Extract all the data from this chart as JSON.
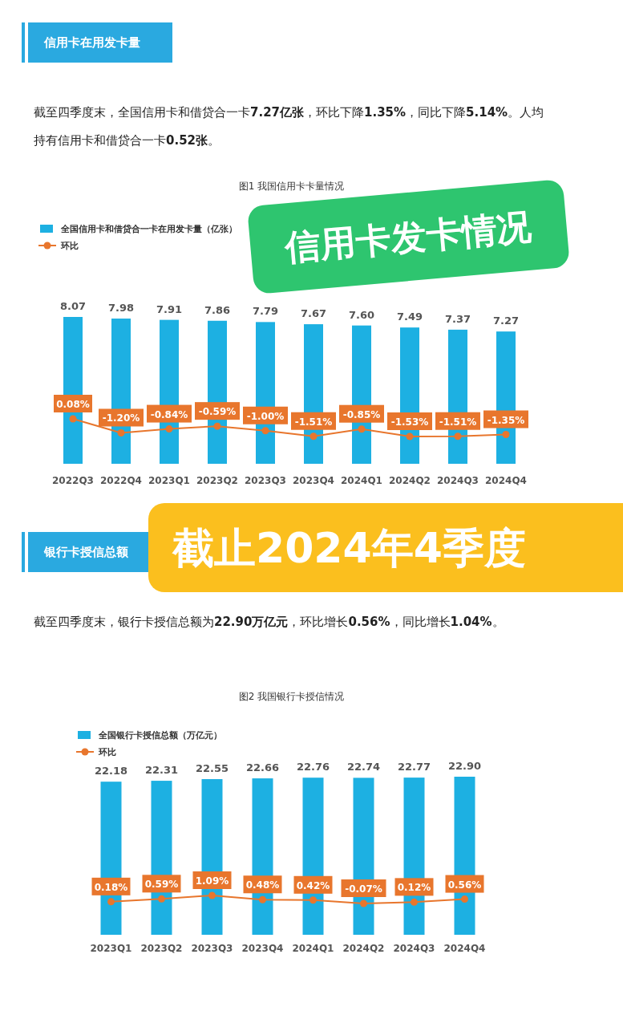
{
  "chart_data": [
    {
      "type": "bar",
      "title": "图1 我国信用卡卡量情况",
      "categories": [
        "2022Q3",
        "2022Q4",
        "2023Q1",
        "2023Q2",
        "2023Q3",
        "2023Q4",
        "2024Q1",
        "2024Q2",
        "2024Q3",
        "2024Q4"
      ],
      "series": [
        {
          "name": "全国信用卡和借贷合一卡在用发卡量（亿张）",
          "color": "#1db0e2",
          "values": [
            8.07,
            7.98,
            7.91,
            7.86,
            7.79,
            7.67,
            7.6,
            7.49,
            7.37,
            7.27
          ],
          "value_labels": [
            "8.07",
            "7.98",
            "7.91",
            "7.86",
            "7.79",
            "7.67",
            "7.60",
            "7.49",
            "7.37",
            "7.27"
          ]
        },
        {
          "name": "环比",
          "type": "line",
          "axis": "y2",
          "color": "#e8762d",
          "values": [
            0.08,
            -1.2,
            -0.84,
            -0.59,
            -1.0,
            -1.51,
            -0.85,
            -1.53,
            -1.51,
            -1.35
          ],
          "value_labels": [
            "0.08%",
            "-1.20%",
            "-0.84%",
            "-0.59%",
            "-1.00%",
            "-1.51%",
            "-0.85%",
            "-1.53%",
            "-1.51%",
            "-1.35%"
          ]
        }
      ],
      "legend": "top left",
      "marker": "circle",
      "annotations": [
        "信用卡在用发卡量",
        "截至四季度末，全国信用卡和借贷合一卡7.27亿张，环比下降1.35%，同比下降5.14%。人均持有信用卡和借贷合一卡0.52张。",
        "信用卡发卡情况"
      ]
    },
    {
      "type": "bar",
      "title": "图2 我国银行卡授信情况",
      "categories": [
        "2023Q1",
        "2023Q2",
        "2023Q3",
        "2023Q4",
        "2024Q1",
        "2024Q2",
        "2024Q3",
        "2024Q4"
      ],
      "series": [
        {
          "name": "全国银行卡授信总额（万亿元）",
          "color": "#1db0e2",
          "values": [
            22.18,
            22.31,
            22.55,
            22.66,
            22.76,
            22.74,
            22.77,
            22.9
          ],
          "value_labels": [
            "22.18",
            "22.31",
            "22.55",
            "22.66",
            "22.76",
            "22.74",
            "22.77",
            "22.90"
          ]
        },
        {
          "name": "环比",
          "type": "line",
          "axis": "y2",
          "color": "#e8762d",
          "values": [
            0.18,
            0.59,
            1.09,
            0.48,
            0.42,
            -0.07,
            0.12,
            0.56
          ],
          "value_labels": [
            "0.18%",
            "0.59%",
            "1.09%",
            "0.48%",
            "0.42%",
            "-0.07%",
            "0.12%",
            "0.56%"
          ]
        }
      ],
      "legend": "top left",
      "marker": "circle",
      "annotations": [
        "银行卡授信总额",
        "截至四季度末，银行卡授信总额为22.90万亿元，环比增长0.56%，同比增长1.04%。",
        "截止2024年4季度"
      ]
    }
  ]
}
